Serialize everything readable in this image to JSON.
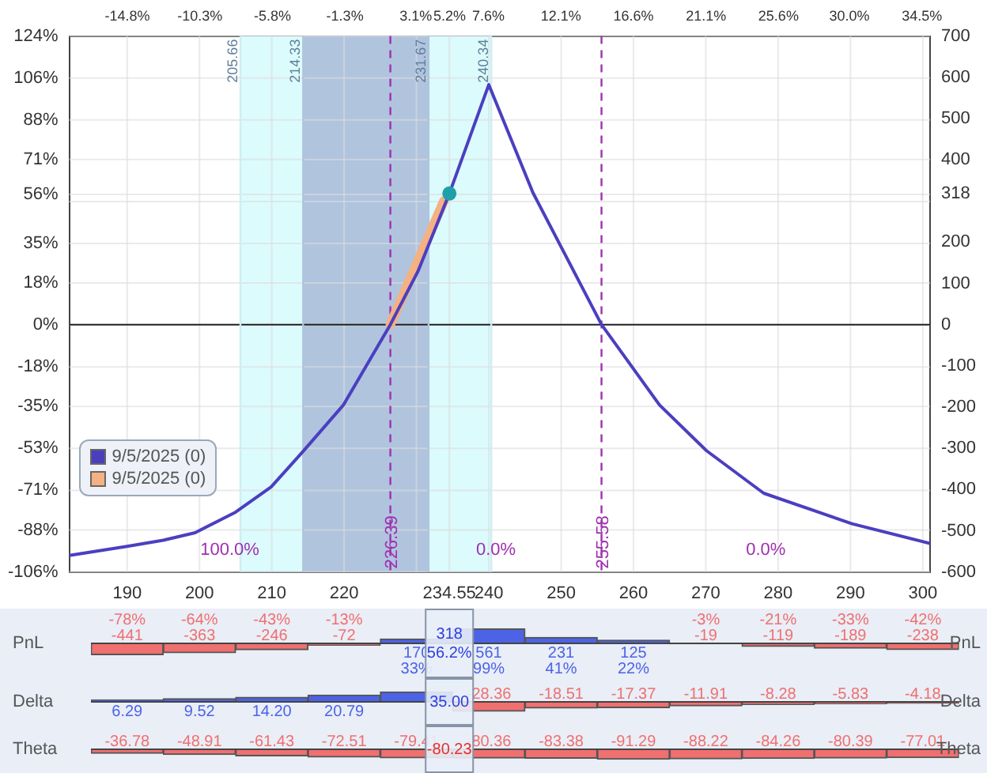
{
  "chart_data": [
    {
      "type": "line",
      "xlim": [
        182,
        301
      ],
      "ylim": [
        -106,
        124
      ],
      "y2lim": [
        -600,
        700
      ],
      "x2lim": [
        -18.4,
        35.0
      ],
      "xticks": [
        190,
        200,
        210,
        220,
        {
          "value": 230,
          "label": null
        },
        {
          "value": 234.55,
          "label": "234.55"
        },
        240,
        250,
        260,
        270,
        280,
        290,
        300
      ],
      "x2ticks": [
        {
          "value": -14.8,
          "label": "-14.8%"
        },
        {
          "value": -10.3,
          "label": "-10.3%"
        },
        {
          "value": -5.8,
          "label": "-5.8%"
        },
        {
          "value": -1.3,
          "label": "-1.3%"
        },
        {
          "value": 3.1,
          "label": "3.1%"
        },
        {
          "value": 5.2,
          "label": "5.2%"
        },
        {
          "value": 7.6,
          "label": "7.6%"
        },
        {
          "value": 12.1,
          "label": "12.1%"
        },
        {
          "value": 16.6,
          "label": "16.6%"
        },
        {
          "value": 21.1,
          "label": "21.1%"
        },
        {
          "value": 25.6,
          "label": "25.6%"
        },
        {
          "value": 30.0,
          "label": "30.0%"
        },
        {
          "value": 34.5,
          "label": "34.5%"
        }
      ],
      "yticks": [
        {
          "value": 124,
          "label": "124%"
        },
        {
          "value": 106,
          "label": "106%"
        },
        {
          "value": 88,
          "label": "88%"
        },
        {
          "value": 71,
          "label": "71%"
        },
        {
          "value": 56,
          "label": "56%"
        },
        {
          "value": 53,
          "label": null
        },
        {
          "value": 35,
          "label": "35%"
        },
        {
          "value": 18,
          "label": "18%"
        },
        {
          "value": 0,
          "label": "0%"
        },
        {
          "value": -18,
          "label": "-18%"
        },
        {
          "value": -35,
          "label": "-35%"
        },
        {
          "value": -53,
          "label": "-53%"
        },
        {
          "value": -71,
          "label": "-71%"
        },
        {
          "value": -88,
          "label": "-88%"
        },
        {
          "value": -106,
          "label": "-106%"
        }
      ],
      "y2ticks": [
        700,
        600,
        500,
        400,
        318,
        200,
        100,
        0,
        -100,
        -200,
        -300,
        -400,
        -500,
        -600
      ],
      "grid": true,
      "legend": "bottom left",
      "series": [
        {
          "name": "9/5/2025 (0)",
          "color": "#4b3fc0",
          "axis": "y2",
          "x": [
            182,
            190,
            195,
            199.4,
            205,
            209.9,
            214.2,
            219.9,
            226.39,
            230.2,
            234.55,
            240,
            246.1,
            255.58,
            263.6,
            270.1,
            278,
            290.2,
            301
          ],
          "values": [
            -560,
            -538,
            -523,
            -505,
            -455,
            -394,
            -310,
            -195,
            0,
            129,
            318,
            582,
            320,
            0,
            -195,
            -306,
            -409,
            -483,
            -531
          ]
        },
        {
          "name": "9/5/2025 (0)",
          "color": "#f4b183",
          "axis": "y2",
          "x": [
            226.39,
            233.8
          ],
          "values": [
            0,
            300
          ]
        },
        {
          "type": "scatter",
          "color": "#1fa0a8",
          "axis": "y2",
          "marker": "circle",
          "x": [
            234.55
          ],
          "values": [
            318
          ]
        }
      ],
      "bands": [
        {
          "axis": "x",
          "from": 205.66,
          "to": 240.34,
          "color": "#dcfbfc"
        },
        {
          "axis": "x",
          "from": 214.33,
          "to": 231.67,
          "color": "#b0c4de"
        }
      ],
      "ref_lines": [
        {
          "axis": "x",
          "value": 205.66,
          "label": "205.66",
          "color": "#cdeef4",
          "line_style": "solid"
        },
        {
          "axis": "x",
          "value": 214.33,
          "label": "214.33",
          "color": "#b0c4de",
          "line_style": "solid"
        },
        {
          "axis": "x",
          "value": 231.67,
          "label": "231.67",
          "color": "#b0c4de",
          "line_style": "solid"
        },
        {
          "axis": "x",
          "value": 240.34,
          "label": "240.34",
          "color": "#cdeef4",
          "line_style": "solid"
        },
        {
          "axis": "x",
          "value": 226.39,
          "label": "226.39",
          "color": "#a030b0",
          "line_style": "dashed"
        },
        {
          "axis": "x",
          "value": 255.58,
          "label": "255.58",
          "color": "#a030b0",
          "line_style": "dashed"
        }
      ],
      "annotations": [
        "100.0%",
        "0.0%",
        "0.0%"
      ]
    },
    {
      "type": "bar",
      "ylabel": "PnL",
      "y2label": "PnL",
      "tick_labels": false,
      "categories": [
        "190",
        "200",
        "210",
        "220",
        "230",
        "240",
        "250",
        "260",
        "270",
        "280",
        "290",
        "300"
      ],
      "values": [
        -441,
        -363,
        -246,
        -72,
        170,
        561,
        231,
        125,
        -19,
        -119,
        -189,
        -238
      ],
      "colors": [
        "#f07070",
        "#f07070",
        "#f07070",
        "#f07070",
        "#4d63e6",
        "#4d63e6",
        "#4d63e6",
        "#4d63e6",
        "#f07070",
        "#f07070",
        "#f07070",
        "#f07070"
      ],
      "value_labels": [
        "-78%\n-441",
        "-64%\n-363",
        "-43%\n-246",
        "-13%\n-72",
        "170\n33%",
        "561\n99%",
        "231\n41%",
        "125\n22%",
        "-3%\n-19",
        "-21%\n-119",
        "-33%\n-189",
        "-42%\n-238"
      ],
      "annotations": [
        "318",
        "56.2%"
      ]
    },
    {
      "type": "bar",
      "ylabel": "Delta",
      "y2label": "Delta",
      "tick_labels": false,
      "categories": [
        "190",
        "200",
        "210",
        "220",
        "230",
        "240",
        "250",
        "260",
        "270",
        "280",
        "290",
        "300"
      ],
      "values": [
        6.29,
        9.52,
        14.2,
        20.79,
        29.9,
        -28.36,
        -18.51,
        -17.37,
        -11.91,
        -8.28,
        -5.83,
        -4.18
      ],
      "colors": [
        "#4d63e6",
        "#4d63e6",
        "#4d63e6",
        "#4d63e6",
        "#4d63e6",
        "#f07070",
        "#f07070",
        "#f07070",
        "#f07070",
        "#f07070",
        "#f07070",
        "#f07070"
      ],
      "value_labels": [
        "6.29",
        "9.52",
        "14.20",
        "20.79",
        null,
        "-28.36",
        "-18.51",
        "-17.37",
        "-11.91",
        "-8.28",
        "-5.83",
        "-4.18"
      ],
      "annotations": [
        "35.00"
      ]
    },
    {
      "type": "bar",
      "ylabel": "Theta",
      "y2label": "Theta",
      "tick_labels": false,
      "categories": [
        "190",
        "200",
        "210",
        "220",
        "230",
        "240",
        "250",
        "260",
        "270",
        "280",
        "290",
        "300"
      ],
      "values": [
        -36.78,
        -48.91,
        -61.43,
        -72.51,
        -79.41,
        -80.36,
        -83.38,
        -91.29,
        -88.22,
        -84.26,
        -80.39,
        -77.01
      ],
      "colors": [
        "#f07070",
        "#f07070",
        "#f07070",
        "#f07070",
        "#f07070",
        "#f07070",
        "#f07070",
        "#f07070",
        "#f07070",
        "#f07070",
        "#f07070",
        "#f07070"
      ],
      "value_labels": [
        "-36.78",
        "-48.91",
        "-61.43",
        "-72.51",
        "-79.41",
        "-80.36",
        "-83.38",
        "-91.29",
        "-88.22",
        "-84.26",
        "-80.39",
        "-77.01"
      ],
      "annotations": [
        "-80.23"
      ]
    }
  ]
}
